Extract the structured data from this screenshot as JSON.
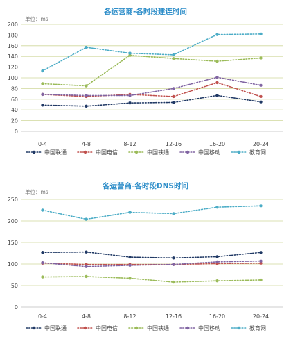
{
  "chart_data": [
    {
      "type": "line",
      "title": "各运营商-各时段建连时间",
      "unit_label": "单位：ms",
      "categories": [
        "0-4",
        "4-8",
        "8-12",
        "12-16",
        "16-20",
        "20-24"
      ],
      "ylim": [
        0,
        200
      ],
      "yticks": [
        0,
        20,
        40,
        60,
        80,
        100,
        120,
        140,
        160,
        180,
        200
      ],
      "grid": true,
      "legend_position": "bottom",
      "series": [
        {
          "name": "中国联通",
          "color": "#1f3864",
          "values": [
            49,
            47,
            53,
            54,
            67,
            55
          ]
        },
        {
          "name": "中国电信",
          "color": "#c0504d",
          "values": [
            69,
            65,
            69,
            65,
            91,
            65
          ]
        },
        {
          "name": "中国铁通",
          "color": "#9bbb59",
          "values": [
            89,
            85,
            142,
            136,
            131,
            137
          ]
        },
        {
          "name": "中国移动",
          "color": "#8064a2",
          "values": [
            69,
            67,
            67,
            80,
            101,
            86
          ]
        },
        {
          "name": "教育网",
          "color": "#4bacc6",
          "values": [
            113,
            157,
            146,
            143,
            181,
            182
          ]
        }
      ]
    },
    {
      "type": "line",
      "title": "各运营商-各时段DNS时间",
      "unit_label": "单位：ms",
      "categories": [
        "0-4",
        "4-8",
        "8-12",
        "12-16",
        "16-20",
        "20-24"
      ],
      "ylim": [
        0,
        250
      ],
      "yticks": [
        0,
        50,
        100,
        150,
        200,
        250
      ],
      "grid": true,
      "legend_position": "bottom",
      "series": [
        {
          "name": "中国联通",
          "color": "#1f3864",
          "values": [
            127,
            128,
            116,
            114,
            117,
            127
          ]
        },
        {
          "name": "中国电信",
          "color": "#c0504d",
          "values": [
            102,
            99,
            99,
            99,
            101,
            102
          ]
        },
        {
          "name": "中国铁通",
          "color": "#9bbb59",
          "values": [
            70,
            71,
            67,
            58,
            61,
            63
          ]
        },
        {
          "name": "中国移动",
          "color": "#8064a2",
          "values": [
            103,
            94,
            97,
            99,
            105,
            107
          ]
        },
        {
          "name": "教育网",
          "color": "#4bacc6",
          "values": [
            225,
            204,
            220,
            217,
            232,
            235
          ]
        }
      ]
    }
  ]
}
